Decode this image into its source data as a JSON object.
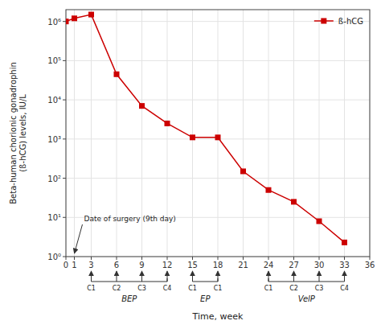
{
  "chart_data": {
    "type": "line",
    "x": [
      0,
      1,
      3,
      6,
      9,
      12,
      15,
      18,
      21,
      24,
      27,
      30,
      33
    ],
    "series": [
      {
        "name": "ß-hCG",
        "color": "#cc0000",
        "marker": "square",
        "values": [
          1000000,
          1200000,
          1500000,
          45000,
          7000,
          2500,
          1100,
          1100,
          150,
          50,
          25,
          8,
          2.3
        ]
      }
    ],
    "xlabel": "Time, week",
    "ylabel": "Beta-human chorionic gonadrophin\n(ß-hCG) levels, IU/L",
    "xlim": [
      0,
      36
    ],
    "xticks": [
      0,
      1,
      3,
      6,
      9,
      12,
      15,
      18,
      21,
      24,
      27,
      30,
      33,
      36
    ],
    "ylim": [
      1,
      2000000
    ],
    "yticks": [
      {
        "value": 1,
        "label": "10⁰"
      },
      {
        "value": 10,
        "label": "10¹"
      },
      {
        "value": 100,
        "label": "10²"
      },
      {
        "value": 1000,
        "label": "10³"
      },
      {
        "value": 10000,
        "label": "10⁴"
      },
      {
        "value": 100000,
        "label": "10⁵"
      },
      {
        "value": 1000000,
        "label": "10⁶"
      }
    ],
    "log": "y",
    "grid": true,
    "legend": "upper right",
    "annotations": [
      {
        "text": "Date of surgery (9th day)",
        "x": 1
      }
    ],
    "groups": [
      {
        "label": "BEP",
        "cycles": [
          "C1",
          "C2",
          "C3",
          "C4"
        ],
        "cycle_x": [
          3,
          6,
          9,
          12
        ],
        "x_left": 3,
        "x_right": 12
      },
      {
        "label": "EP",
        "cycles": [
          "C1",
          "C1"
        ],
        "cycle_x": [
          15,
          18
        ],
        "x_left": 15,
        "x_right": 18
      },
      {
        "label": "VelP",
        "cycles": [
          "C1",
          "C2",
          "C3",
          "C4"
        ],
        "cycle_x": [
          24,
          27,
          30,
          33
        ],
        "x_left": 24,
        "x_right": 33
      }
    ]
  }
}
